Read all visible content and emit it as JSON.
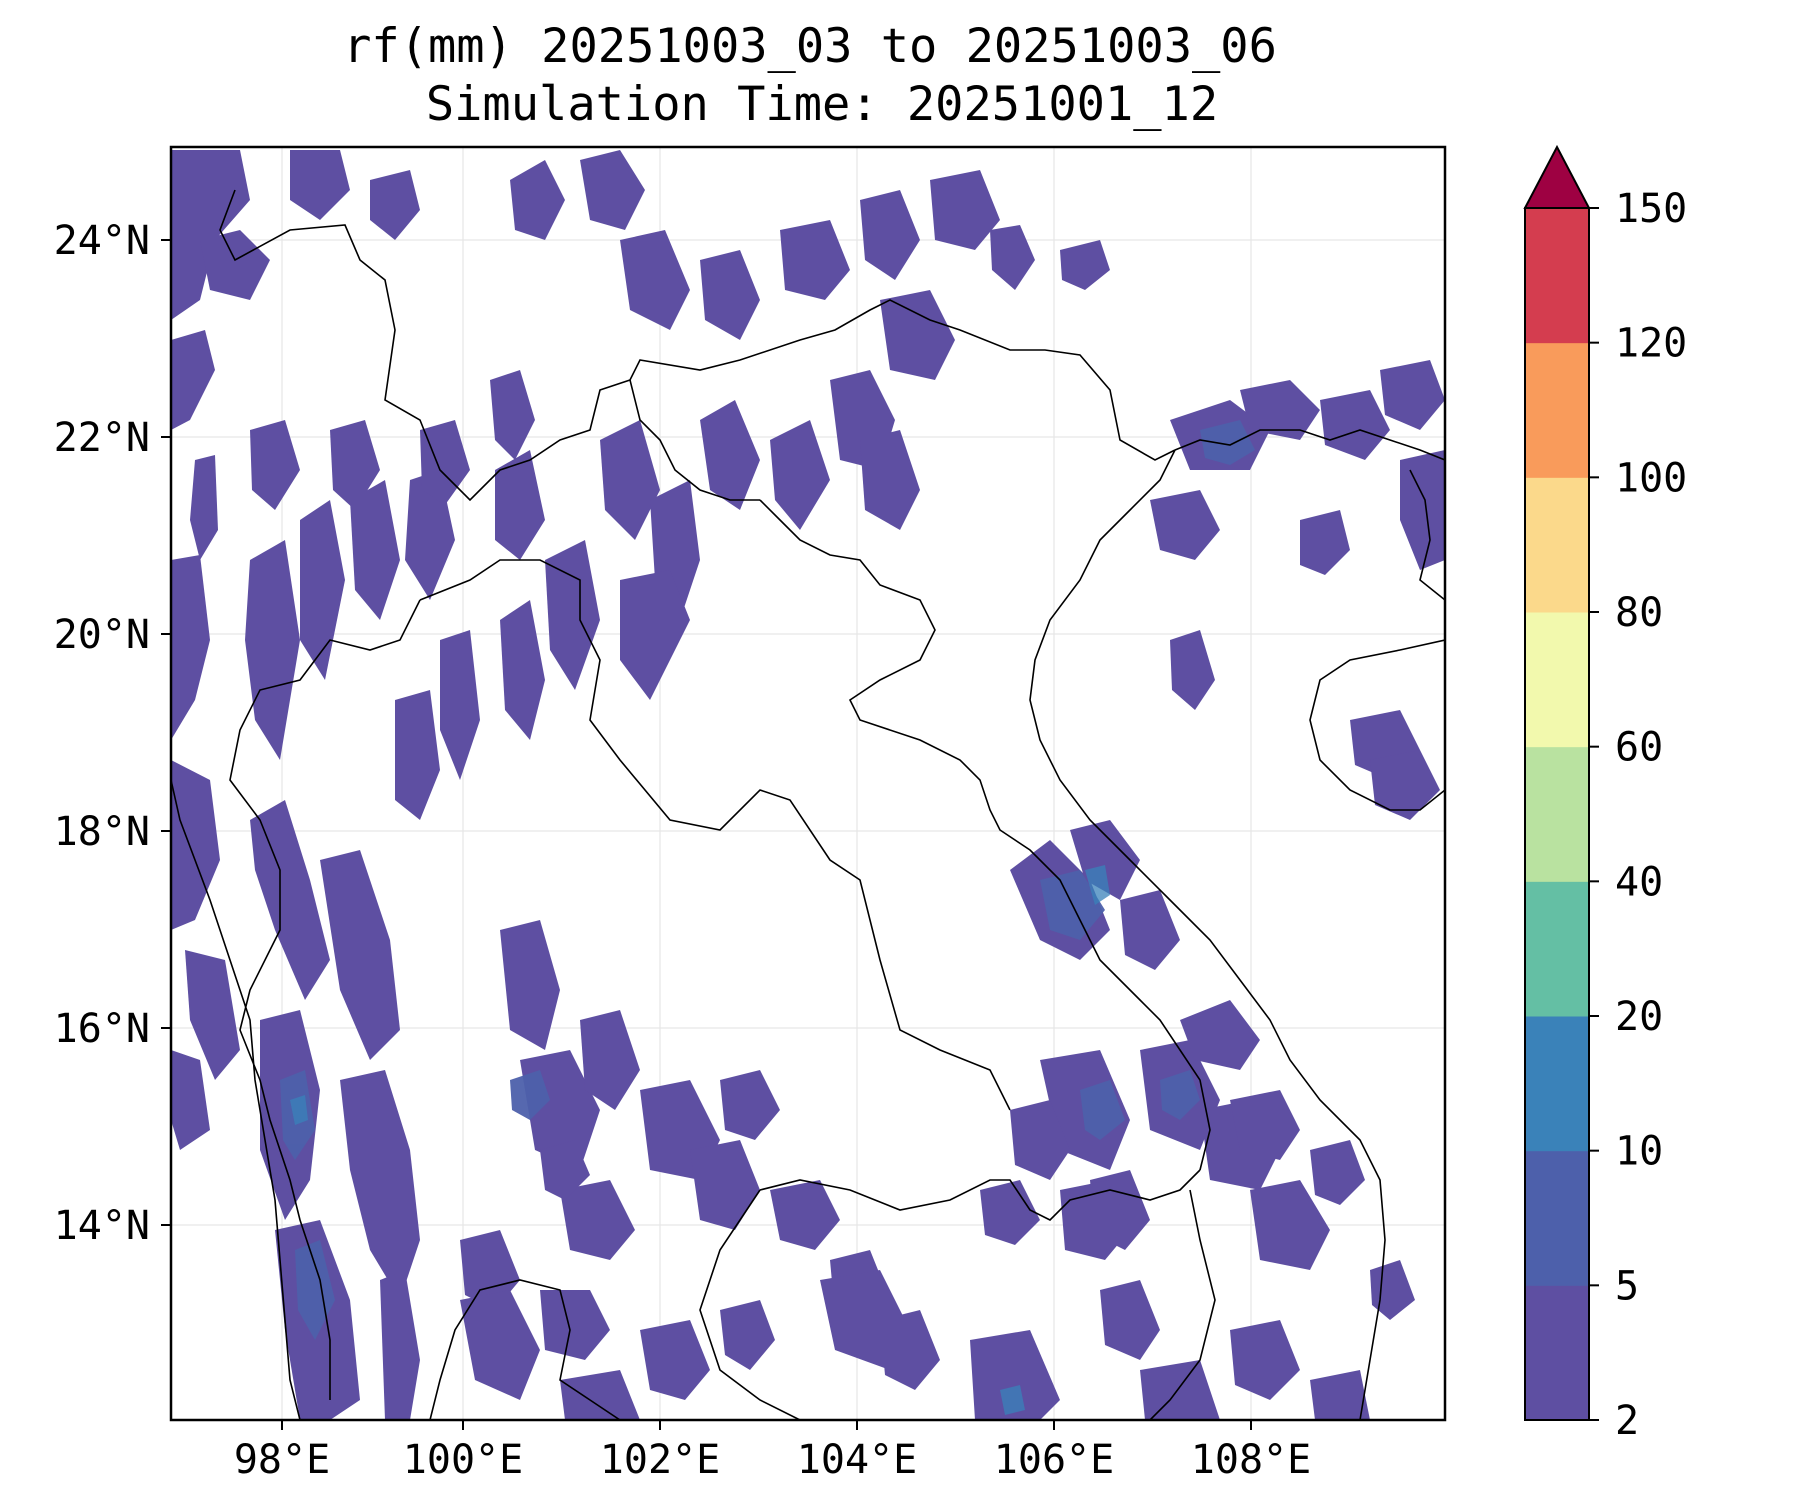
{
  "title": {
    "line1": "rf(mm) 20251003_03 to 20251003_06",
    "line2": "Simulation Time: 20251001_12"
  },
  "map": {
    "lon_range": [
      97,
      110
    ],
    "lat_range": [
      12,
      25
    ],
    "x_ticks": [
      "98°E",
      "100°E",
      "102°E",
      "104°E",
      "106°E",
      "108°E"
    ],
    "y_ticks": [
      "24°N",
      "22°N",
      "20°N",
      "18°N",
      "16°N",
      "14°N"
    ],
    "x_tick_values": [
      98,
      100,
      102,
      104,
      106,
      108
    ],
    "y_tick_values": [
      24,
      22,
      20,
      18,
      16,
      14
    ],
    "grid": true
  },
  "colorbar": {
    "levels": [
      2,
      5,
      10,
      20,
      40,
      60,
      80,
      100,
      120,
      150
    ],
    "labels": [
      "2",
      "5",
      "10",
      "20",
      "40",
      "60",
      "80",
      "100",
      "120",
      "150"
    ],
    "colors": [
      "#5e4fa2",
      "#4d60ab",
      "#3a82b9",
      "#64bfa4",
      "#b9e2a0",
      "#f2f9ad",
      "#fbd98b",
      "#f99b5b",
      "#d43d4f",
      "#9e0142"
    ],
    "extend": "max"
  }
}
